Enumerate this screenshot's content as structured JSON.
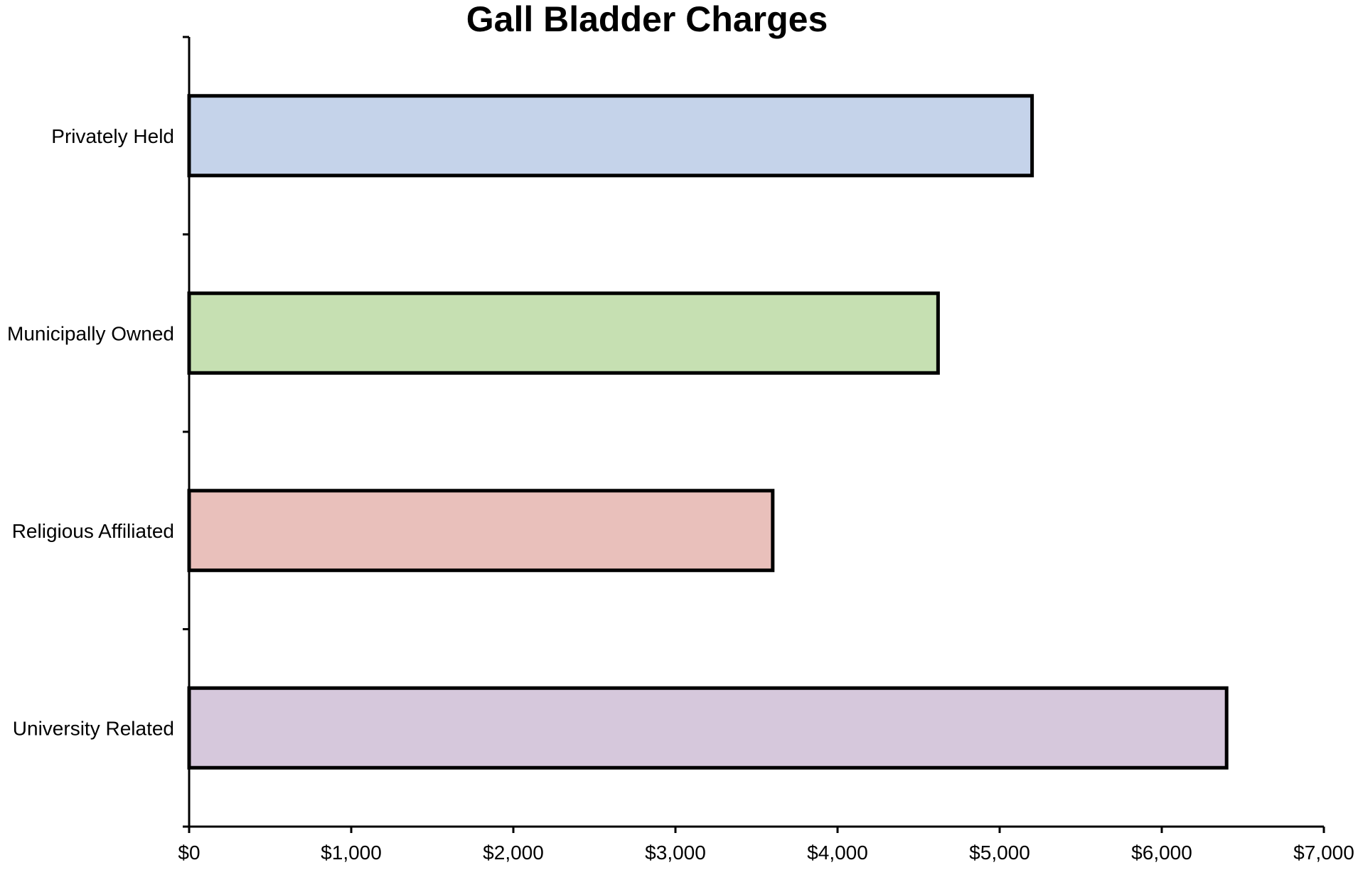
{
  "chart_data": {
    "type": "bar",
    "orientation": "horizontal",
    "title": "Gall Bladder Charges",
    "xlabel": "",
    "ylabel": "",
    "categories": [
      "Privately Held",
      "Municipally Owned",
      "Religious Affiliated",
      "University Related"
    ],
    "values": [
      5200,
      4620,
      3600,
      6400
    ],
    "colors": [
      "#c5d3ea",
      "#c6e0b2",
      "#e9c0bb",
      "#d6c8dc"
    ],
    "xlim": [
      0,
      7000
    ],
    "x_ticks": [
      0,
      1000,
      2000,
      3000,
      4000,
      5000,
      6000,
      7000
    ],
    "x_tick_labels": [
      "$0",
      "$1,000",
      "$2,000",
      "$3,000",
      "$4,000",
      "$5,000",
      "$6,000",
      "$7,000"
    ],
    "grid": false,
    "legend": "none"
  }
}
